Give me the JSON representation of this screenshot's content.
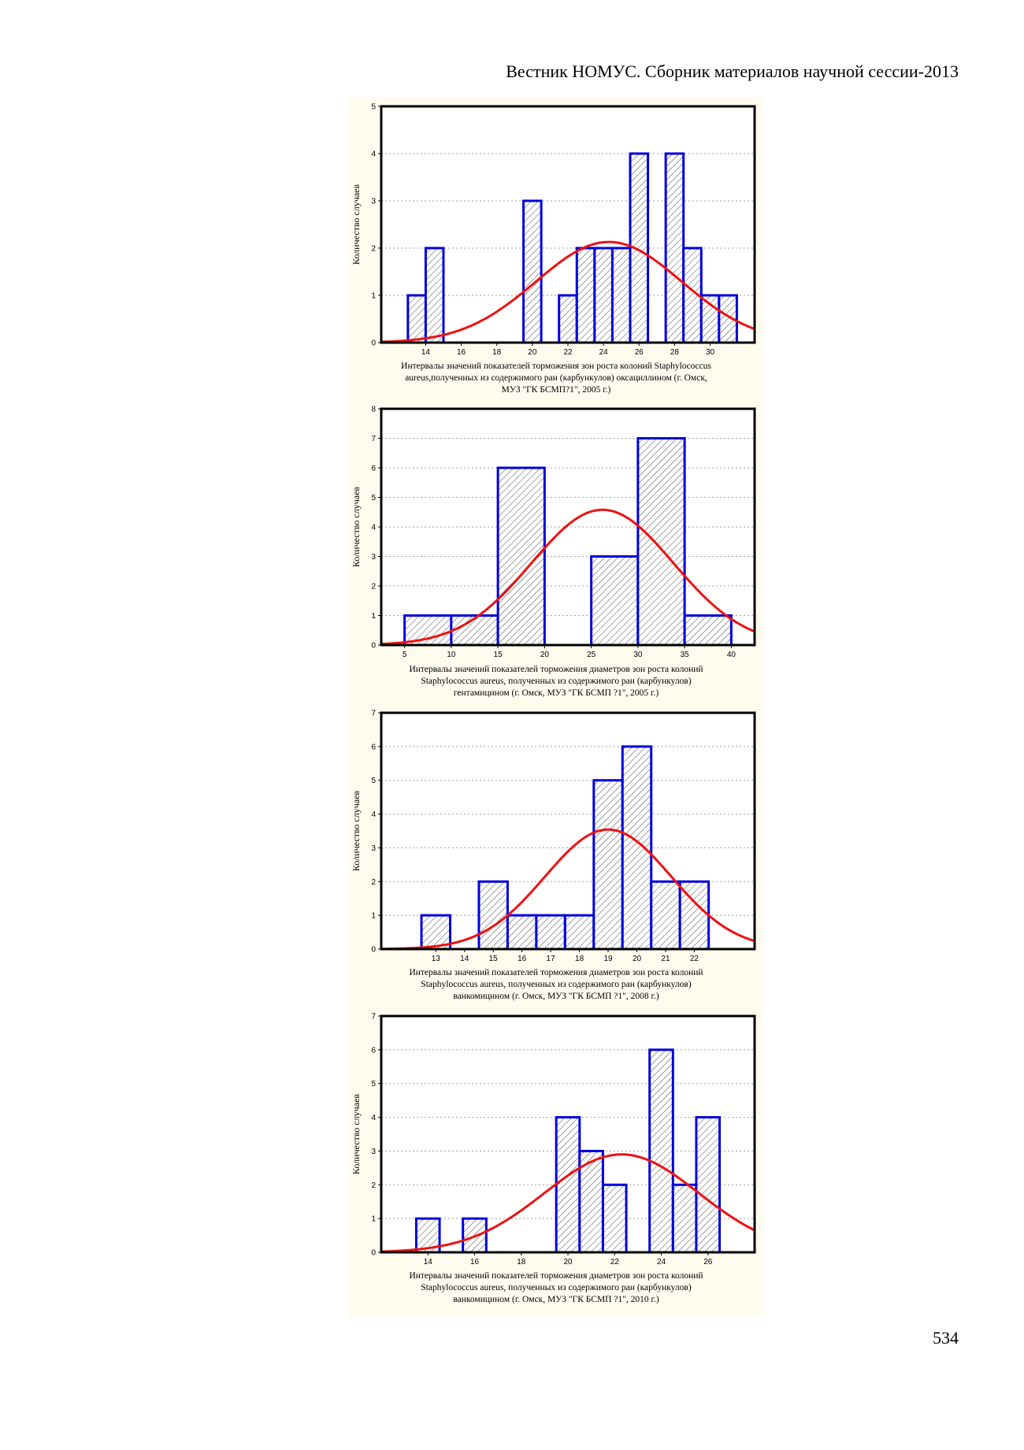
{
  "page": {
    "running_head": "Вестник НОМУС. Сборник материалов научной сессии-2013",
    "page_number": "534"
  },
  "chart_data": [
    {
      "type": "bar",
      "subtype": "histogram-with-normal-curve",
      "ylabel": "Количество случаев",
      "ylim": [
        0,
        5
      ],
      "yticks": [
        0,
        1,
        2,
        3,
        4,
        5
      ],
      "xlim": [
        11.5,
        32.5
      ],
      "xticks": [
        14,
        16,
        18,
        20,
        22,
        24,
        26,
        28,
        30
      ],
      "bins": [
        {
          "from": 13,
          "to": 14,
          "count": 1
        },
        {
          "from": 14,
          "to": 15,
          "count": 2
        },
        {
          "from": 19.5,
          "to": 20.5,
          "count": 3
        },
        {
          "from": 21.5,
          "to": 22.5,
          "count": 1
        },
        {
          "from": 22.5,
          "to": 23.5,
          "count": 2
        },
        {
          "from": 23.5,
          "to": 24.5,
          "count": 2
        },
        {
          "from": 24.5,
          "to": 25.5,
          "count": 2
        },
        {
          "from": 25.5,
          "to": 26.5,
          "count": 4
        },
        {
          "from": 27.5,
          "to": 28.5,
          "count": 4
        },
        {
          "from": 28.5,
          "to": 29.5,
          "count": 2
        },
        {
          "from": 29.5,
          "to": 30.5,
          "count": 1
        },
        {
          "from": 30.5,
          "to": 31.5,
          "count": 1
        }
      ],
      "normal_curve": {
        "mean": 24.3,
        "sd": 4.1,
        "peak": 2.13
      },
      "grid": true,
      "colors": {
        "bar_edge": "#0000dd",
        "curve": "#ee1111",
        "hatch": "#333333"
      },
      "caption": [
        "Интервалы значений показателей торможения зон роста колоний Staphylococcus",
        "aureus,полученных из содержимого ран (карбункулов) оксациллином (г. Омск,",
        "МУЗ \"ГК БСМП?1\", 2005 г.)"
      ]
    },
    {
      "type": "bar",
      "subtype": "histogram-with-normal-curve",
      "ylabel": "Количество случаев",
      "ylim": [
        0,
        8
      ],
      "yticks": [
        0,
        1,
        2,
        3,
        4,
        5,
        6,
        7,
        8
      ],
      "xlim": [
        2.5,
        42.5
      ],
      "xticks": [
        5,
        10,
        15,
        20,
        25,
        30,
        35,
        40
      ],
      "bins": [
        {
          "from": 5,
          "to": 10,
          "count": 1
        },
        {
          "from": 10,
          "to": 15,
          "count": 1
        },
        {
          "from": 15,
          "to": 20,
          "count": 6
        },
        {
          "from": 25,
          "to": 30,
          "count": 3
        },
        {
          "from": 30,
          "to": 35,
          "count": 7
        },
        {
          "from": 35,
          "to": 40,
          "count": 1
        }
      ],
      "normal_curve": {
        "mean": 26.2,
        "sd": 7.6,
        "peak": 4.58
      },
      "grid": true,
      "colors": {
        "bar_edge": "#0000dd",
        "curve": "#ee1111",
        "hatch": "#333333"
      },
      "caption": [
        "Интервалы значений показателей торможения диаметров зон роста колоний",
        "Staphylococcus aureus, полученных из содержимого ран (карбункулов)",
        "гентамицином (г. Омск, МУЗ \"ГК БСМП ?1\", 2005 г.)"
      ]
    },
    {
      "type": "bar",
      "subtype": "histogram-with-normal-curve",
      "ylabel": "Количество случаев",
      "ylim": [
        0,
        7
      ],
      "yticks": [
        0,
        1,
        2,
        3,
        4,
        5,
        6,
        7
      ],
      "xlim": [
        11.1,
        24.1
      ],
      "xticks": [
        13,
        14,
        15,
        16,
        17,
        18,
        19,
        20,
        21,
        22
      ],
      "bins": [
        {
          "from": 12.5,
          "to": 13.5,
          "count": 1
        },
        {
          "from": 14.5,
          "to": 15.5,
          "count": 2
        },
        {
          "from": 15.5,
          "to": 16.5,
          "count": 1
        },
        {
          "from": 16.5,
          "to": 17.5,
          "count": 1
        },
        {
          "from": 17.5,
          "to": 18.5,
          "count": 1
        },
        {
          "from": 18.5,
          "to": 19.5,
          "count": 5
        },
        {
          "from": 19.5,
          "to": 20.5,
          "count": 6
        },
        {
          "from": 20.5,
          "to": 21.5,
          "count": 2
        },
        {
          "from": 21.5,
          "to": 22.5,
          "count": 2
        }
      ],
      "normal_curve": {
        "mean": 19.0,
        "sd": 2.2,
        "peak": 3.54
      },
      "grid": true,
      "colors": {
        "bar_edge": "#0000dd",
        "curve": "#ee1111",
        "hatch": "#333333"
      },
      "caption": [
        "Интервалы значений показателей торможения диаметров зон роста колоний",
        "Staphylococcus aureus, полученных из содержимого ран (карбункулов)",
        "ванкомицином (г. Омск, МУЗ \"ГК БСМП ?1\", 2008 г.)"
      ]
    },
    {
      "type": "bar",
      "subtype": "histogram-with-normal-curve",
      "ylabel": "Количество случаев",
      "ylim": [
        0,
        7
      ],
      "yticks": [
        0,
        1,
        2,
        3,
        4,
        5,
        6,
        7
      ],
      "xlim": [
        12,
        28
      ],
      "xticks": [
        14,
        16,
        18,
        20,
        22,
        24,
        26
      ],
      "bins": [
        {
          "from": 13.5,
          "to": 14.5,
          "count": 1
        },
        {
          "from": 15.5,
          "to": 16.5,
          "count": 1
        },
        {
          "from": 19.5,
          "to": 20.5,
          "count": 4
        },
        {
          "from": 20.5,
          "to": 21.5,
          "count": 3
        },
        {
          "from": 21.5,
          "to": 22.5,
          "count": 2
        },
        {
          "from": 23.5,
          "to": 24.5,
          "count": 6
        },
        {
          "from": 24.5,
          "to": 25.5,
          "count": 2
        },
        {
          "from": 25.5,
          "to": 26.5,
          "count": 4
        }
      ],
      "normal_curve": {
        "mean": 22.3,
        "sd": 3.3,
        "peak": 2.9
      },
      "grid": true,
      "colors": {
        "bar_edge": "#0000dd",
        "curve": "#ee1111",
        "hatch": "#333333"
      },
      "caption": [
        "Интервалы значений показателей торможения диаметров зон роста колоний",
        "Staphylococcus aureus, полученных из содержимого  ран (карбункулов)",
        "ванкомицином (г. Омск, МУЗ \"ГК БСМП ?1\", 2010 г.)"
      ]
    }
  ]
}
